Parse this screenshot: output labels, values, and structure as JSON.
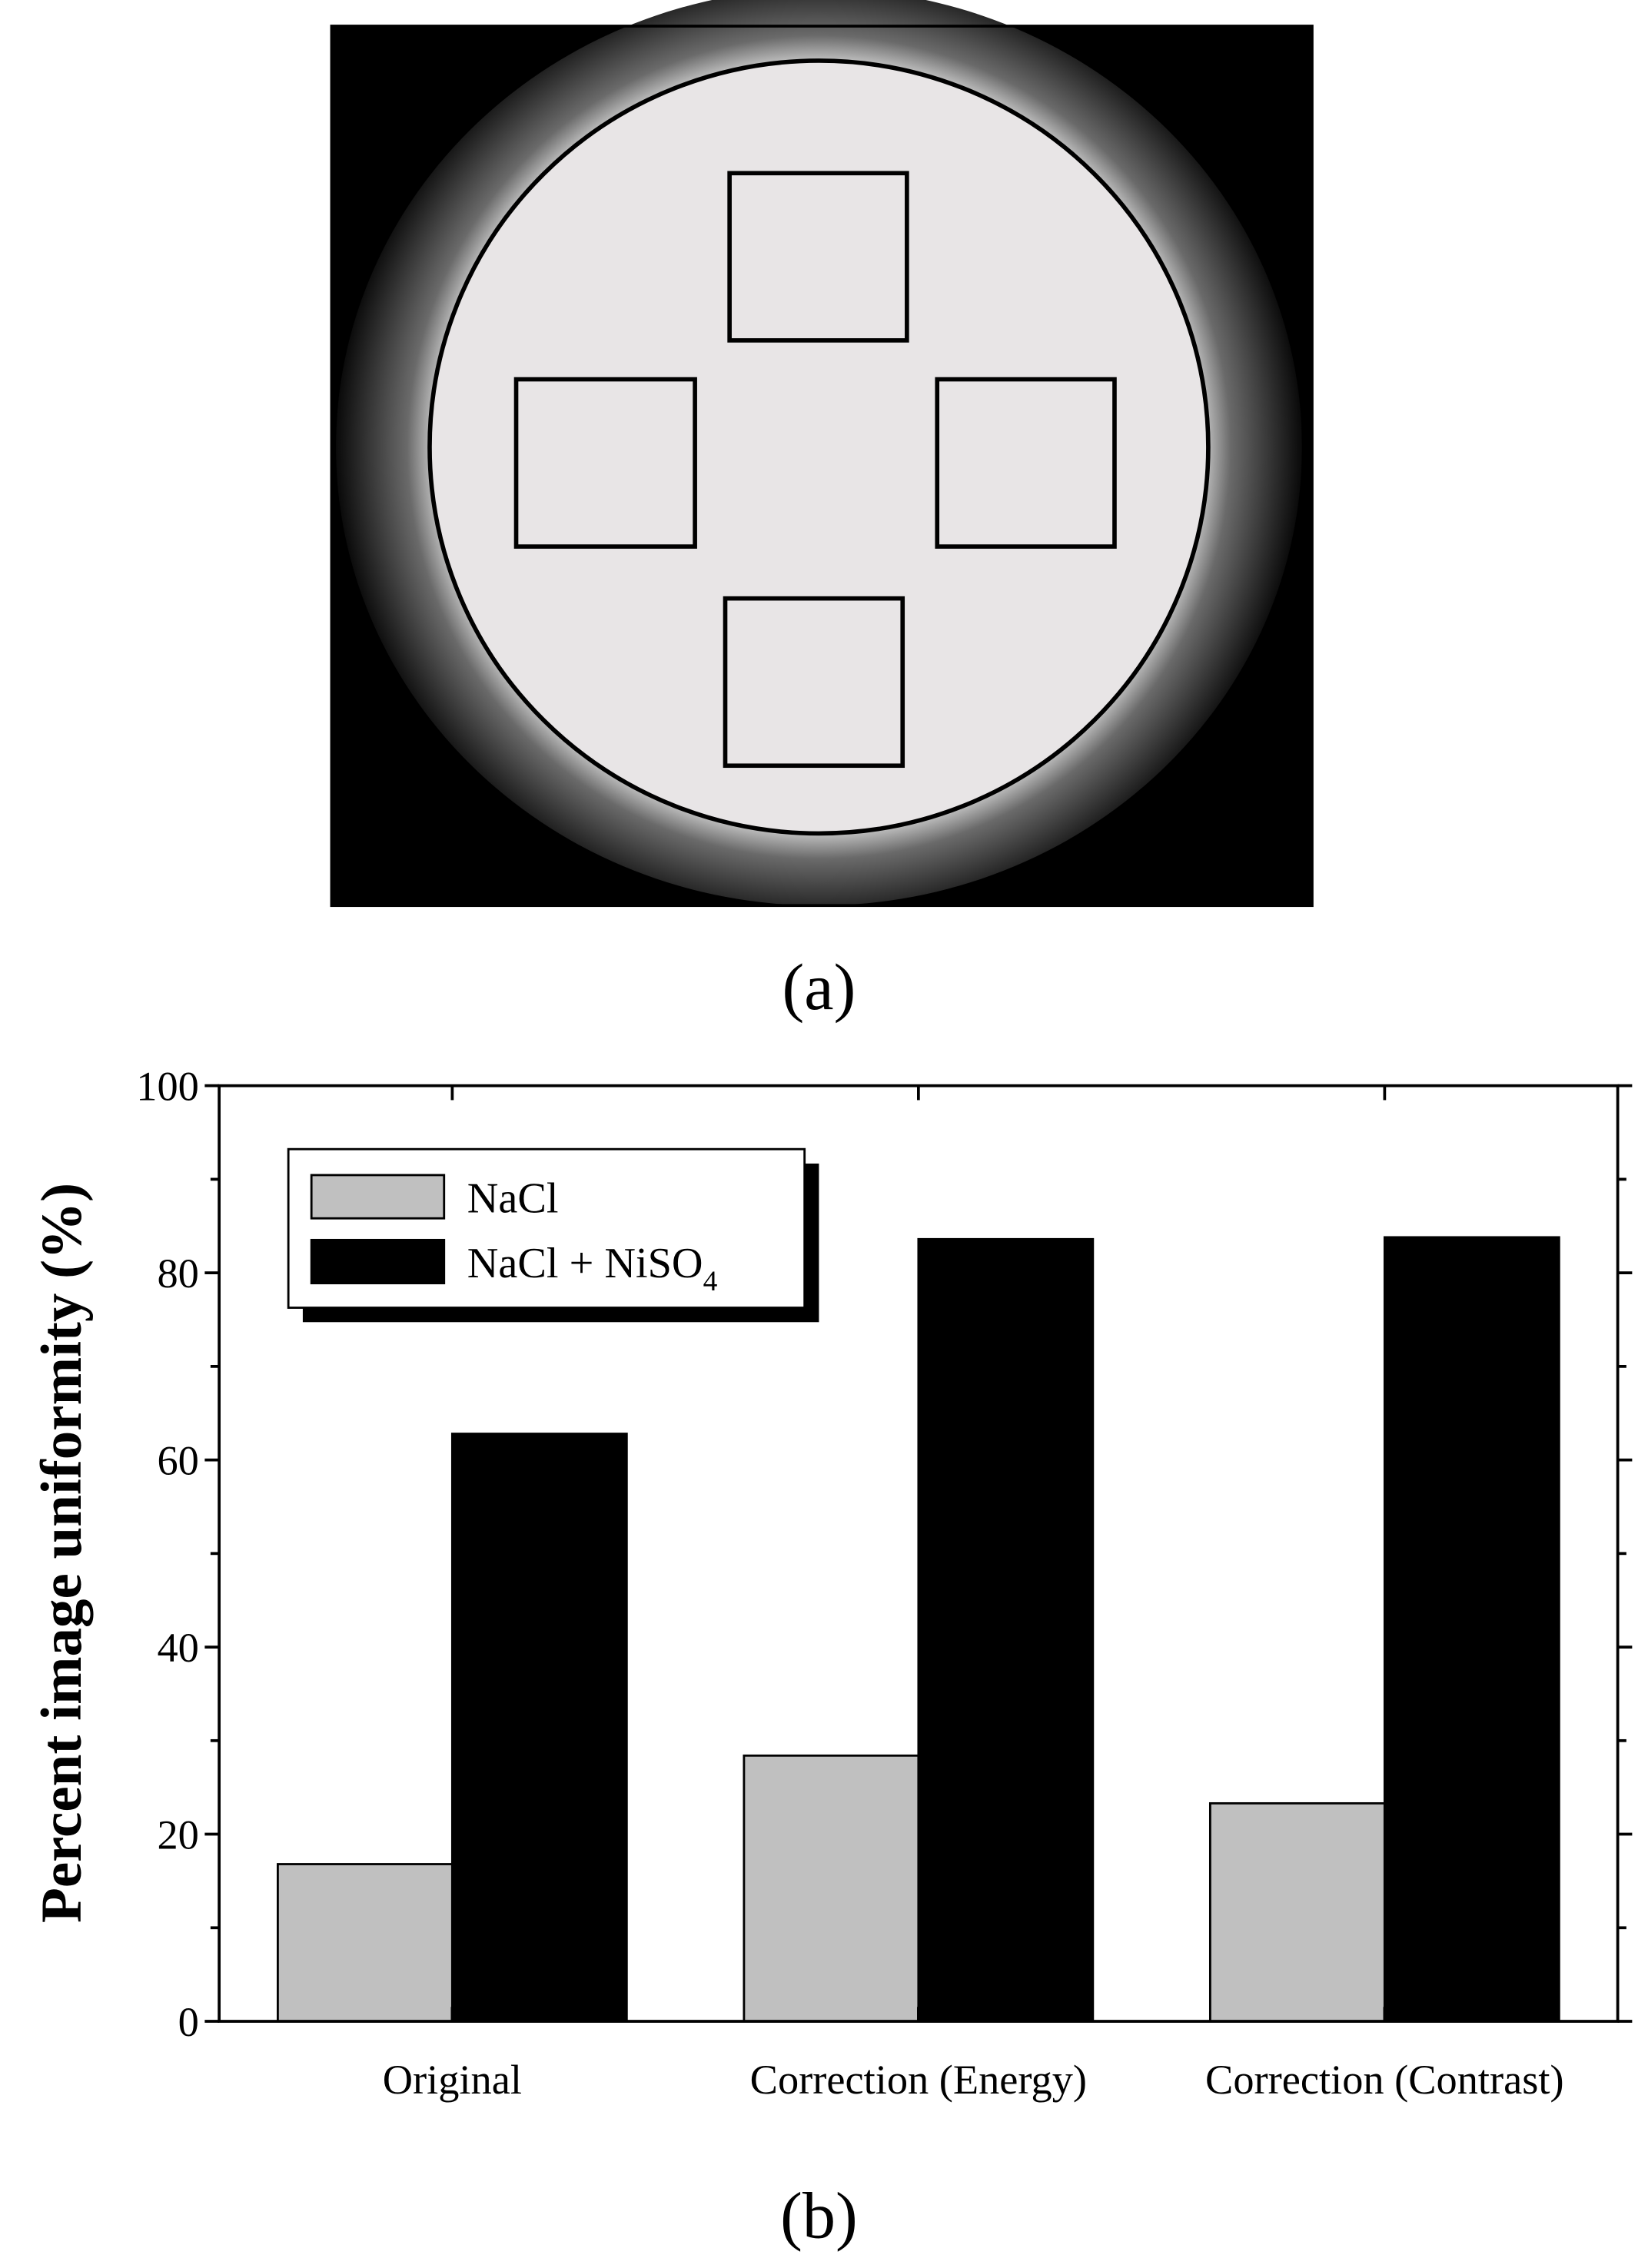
{
  "figure_labels": [
    "(a)",
    "(b)"
  ],
  "chart_data": {
    "type": "bar",
    "y_label": "Percent image uniformity (%)",
    "categories": [
      "Original",
      "Correction (Energy)",
      "Correction (Contrast)"
    ],
    "series": [
      {
        "name": "NaCl",
        "color": "#c0c0c0",
        "values": [
          16.8,
          28.4,
          23.3
        ]
      },
      {
        "name": "NaCl + NiSO4",
        "color": "#000000",
        "values": [
          62.8,
          83.6,
          83.8
        ]
      }
    ],
    "ylim": [
      0,
      100
    ],
    "yticks": [
      0,
      20,
      40,
      60,
      80,
      100
    ],
    "legend": "upper left"
  }
}
